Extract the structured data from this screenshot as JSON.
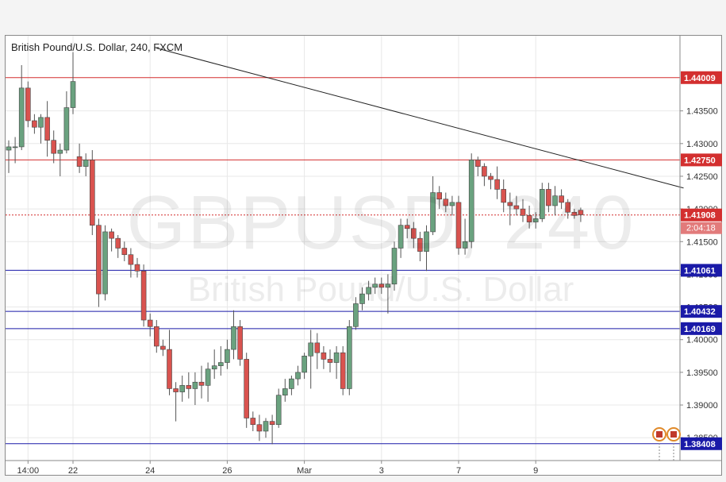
{
  "chart_data": {
    "type": "candlestick",
    "title": "British Pound/U.S. Dollar, 240, FXCM",
    "watermark_symbol": "GBPUSD, 240",
    "watermark_name": "British Pound/U.S. Dollar",
    "ylim": [
      1.3815,
      1.4465
    ],
    "y_ticks": [
      "1.38500",
      "1.39000",
      "1.39500",
      "1.40000",
      "1.40500",
      "1.41000",
      "1.41500",
      "1.42000",
      "1.42500",
      "1.43000",
      "1.43500"
    ],
    "x_tick_labels": [
      "14:00",
      "22",
      "24",
      "26",
      "Mar",
      "3",
      "7",
      "9"
    ],
    "x_tick_bar_index": [
      3,
      10,
      22,
      34,
      46,
      58,
      70,
      82
    ],
    "candles": [
      [
        1.429,
        1.4305,
        1.4255,
        1.4295
      ],
      [
        1.4295,
        1.431,
        1.427,
        1.4295
      ],
      [
        1.4295,
        1.442,
        1.429,
        1.4385
      ],
      [
        1.4385,
        1.4395,
        1.4325,
        1.4335
      ],
      [
        1.4335,
        1.4345,
        1.4315,
        1.4325
      ],
      [
        1.4325,
        1.4345,
        1.43,
        1.434
      ],
      [
        1.434,
        1.4365,
        1.428,
        1.4305
      ],
      [
        1.4305,
        1.432,
        1.427,
        1.4285
      ],
      [
        1.4285,
        1.43,
        1.425,
        1.429
      ],
      [
        1.429,
        1.438,
        1.4285,
        1.4355
      ],
      [
        1.4355,
        1.444,
        1.4345,
        1.4395
      ],
      [
        1.428,
        1.43,
        1.4255,
        1.4265
      ],
      [
        1.4265,
        1.4285,
        1.425,
        1.4275
      ],
      [
        1.4275,
        1.429,
        1.416,
        1.4175
      ],
      [
        1.4175,
        1.4185,
        1.405,
        1.407
      ],
      [
        1.407,
        1.4175,
        1.406,
        1.4165
      ],
      [
        1.4165,
        1.417,
        1.4135,
        1.4155
      ],
      [
        1.4155,
        1.416,
        1.4125,
        1.414
      ],
      [
        1.414,
        1.415,
        1.412,
        1.413
      ],
      [
        1.413,
        1.414,
        1.4095,
        1.4115
      ],
      [
        1.4115,
        1.4125,
        1.4095,
        1.4105
      ],
      [
        1.4105,
        1.4115,
        1.402,
        1.403
      ],
      [
        1.403,
        1.404,
        1.4005,
        1.402
      ],
      [
        1.402,
        1.403,
        1.398,
        1.399
      ],
      [
        1.399,
        1.4,
        1.3975,
        1.3985
      ],
      [
        1.3985,
        1.4015,
        1.3915,
        1.3925
      ],
      [
        1.3925,
        1.3935,
        1.3875,
        1.392
      ],
      [
        1.392,
        1.3945,
        1.3905,
        1.393
      ],
      [
        1.393,
        1.395,
        1.391,
        1.3925
      ],
      [
        1.3925,
        1.395,
        1.39,
        1.3935
      ],
      [
        1.3935,
        1.396,
        1.391,
        1.393
      ],
      [
        1.393,
        1.3965,
        1.3905,
        1.3955
      ],
      [
        1.3955,
        1.3985,
        1.394,
        1.396
      ],
      [
        1.396,
        1.399,
        1.3945,
        1.3965
      ],
      [
        1.3965,
        1.4,
        1.3955,
        1.3985
      ],
      [
        1.3985,
        1.4045,
        1.397,
        1.402
      ],
      [
        1.402,
        1.403,
        1.396,
        1.397
      ],
      [
        1.397,
        1.398,
        1.3865,
        1.388
      ],
      [
        1.388,
        1.389,
        1.386,
        1.387
      ],
      [
        1.387,
        1.3885,
        1.3845,
        1.386
      ],
      [
        1.386,
        1.388,
        1.385,
        1.3875
      ],
      [
        1.3875,
        1.3885,
        1.384,
        1.387
      ],
      [
        1.387,
        1.3925,
        1.3865,
        1.3915
      ],
      [
        1.3915,
        1.394,
        1.3905,
        1.3925
      ],
      [
        1.3925,
        1.3945,
        1.3915,
        1.394
      ],
      [
        1.394,
        1.396,
        1.393,
        1.395
      ],
      [
        1.395,
        1.398,
        1.394,
        1.3975
      ],
      [
        1.3975,
        1.4015,
        1.3925,
        1.3995
      ],
      [
        1.3995,
        1.401,
        1.3955,
        1.398
      ],
      [
        1.398,
        1.399,
        1.3955,
        1.397
      ],
      [
        1.397,
        1.3985,
        1.395,
        1.3965
      ],
      [
        1.3965,
        1.399,
        1.394,
        1.398
      ],
      [
        1.398,
        1.399,
        1.3915,
        1.3925
      ],
      [
        1.3925,
        1.403,
        1.3915,
        1.402
      ],
      [
        1.402,
        1.4065,
        1.4015,
        1.4055
      ],
      [
        1.4055,
        1.408,
        1.4045,
        1.407
      ],
      [
        1.407,
        1.409,
        1.406,
        1.408
      ],
      [
        1.408,
        1.4095,
        1.407,
        1.4085
      ],
      [
        1.4085,
        1.4095,
        1.407,
        1.408
      ],
      [
        1.408,
        1.41,
        1.404,
        1.4085
      ],
      [
        1.4085,
        1.415,
        1.4075,
        1.414
      ],
      [
        1.414,
        1.4185,
        1.4125,
        1.4175
      ],
      [
        1.4175,
        1.4185,
        1.4155,
        1.417
      ],
      [
        1.417,
        1.418,
        1.414,
        1.4155
      ],
      [
        1.4155,
        1.4165,
        1.412,
        1.4135
      ],
      [
        1.4135,
        1.4175,
        1.4105,
        1.4165
      ],
      [
        1.4165,
        1.425,
        1.416,
        1.4225
      ],
      [
        1.4225,
        1.4235,
        1.42,
        1.4215
      ],
      [
        1.4215,
        1.4225,
        1.4195,
        1.4205
      ],
      [
        1.4205,
        1.422,
        1.419,
        1.421
      ],
      [
        1.421,
        1.422,
        1.413,
        1.414
      ],
      [
        1.414,
        1.4185,
        1.413,
        1.415
      ],
      [
        1.415,
        1.4285,
        1.414,
        1.4275
      ],
      [
        1.4275,
        1.428,
        1.425,
        1.4265
      ],
      [
        1.4265,
        1.427,
        1.4235,
        1.425
      ],
      [
        1.425,
        1.4255,
        1.423,
        1.4245
      ],
      [
        1.4245,
        1.4265,
        1.4215,
        1.423
      ],
      [
        1.423,
        1.4245,
        1.4195,
        1.421
      ],
      [
        1.421,
        1.4225,
        1.4175,
        1.4205
      ],
      [
        1.4205,
        1.422,
        1.419,
        1.42
      ],
      [
        1.42,
        1.4215,
        1.418,
        1.419
      ],
      [
        1.419,
        1.4205,
        1.417,
        1.418
      ],
      [
        1.418,
        1.4195,
        1.417,
        1.4185
      ],
      [
        1.4185,
        1.424,
        1.418,
        1.423
      ],
      [
        1.423,
        1.424,
        1.4195,
        1.4205
      ],
      [
        1.4205,
        1.4235,
        1.419,
        1.422
      ],
      [
        1.422,
        1.423,
        1.42,
        1.421
      ],
      [
        1.421,
        1.4215,
        1.4185,
        1.4195
      ],
      [
        1.4195,
        1.42,
        1.4185,
        1.419
      ],
      [
        1.4198,
        1.4202,
        1.418,
        1.4191
      ]
    ],
    "levels": [
      {
        "value": 1.44009,
        "label": "1.44009",
        "color": "#d32f2f"
      },
      {
        "value": 1.4275,
        "label": "1.42750",
        "color": "#d32f2f"
      },
      {
        "value": 1.41061,
        "label": "1.41061",
        "color": "#1a1aa8"
      },
      {
        "value": 1.40432,
        "label": "1.40432",
        "color": "#1a1aa8"
      },
      {
        "value": 1.40169,
        "label": "1.40169",
        "color": "#1a1aa8"
      },
      {
        "value": 1.38408,
        "label": "1.38408",
        "color": "#1a1aa8"
      }
    ],
    "current_price": {
      "value": 1.41908,
      "label": "1.41908",
      "countdown": "2:04:18",
      "color": "#d32f2f"
    },
    "trendline": {
      "start": {
        "bar": 23,
        "price": 1.4446
      },
      "end": {
        "bar": 105,
        "price": 1.4232
      },
      "color": "#222222"
    },
    "colors": {
      "bull_fill": "#6aa27f",
      "bear_fill": "#d9534f",
      "wick": "#555555",
      "grid": "#e8e8e8",
      "axis_text": "#333333"
    }
  }
}
